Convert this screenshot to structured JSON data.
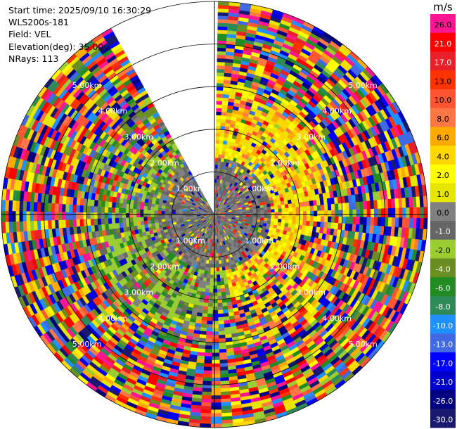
{
  "header": {
    "start_time": "Start time: 2025/09/10 16:30:29",
    "instrument": "WLS200s-181",
    "field": "Field: VEL",
    "elevation": "Elevation(deg): 35.00",
    "nrays": "NRays: 113"
  },
  "chart_data": {
    "type": "heatmap",
    "projection": "polar-ppi",
    "field": "VEL",
    "units": "m/s",
    "range_rings_km": [
      1,
      2,
      3,
      4,
      5
    ],
    "ring_labels": [
      "1.00km",
      "2.00km",
      "3.00km",
      "4.00km",
      "5.00km"
    ],
    "max_range_km": 5.0,
    "missing_sector_deg": [
      -30,
      0
    ],
    "colorbar": {
      "unit": "m/s",
      "ticks": [
        "26.0",
        "21.0",
        "17.0",
        "13.0",
        "10.0",
        "8.0",
        "6.0",
        "4.0",
        "2.0",
        "1.0",
        "0.0",
        "-1.0",
        "-2.0",
        "-4.0",
        "-6.0",
        "-8.0",
        "-10.0",
        "-13.0",
        "-17.0",
        "-21.0",
        "-26.0",
        "-30.0"
      ],
      "colors": [
        "#ff1493",
        "#ff0000",
        "#e8202a",
        "#ff3300",
        "#ff5533",
        "#ff7744",
        "#ffaa00",
        "#ffd700",
        "#ffff00",
        "#e6e600",
        "#808080",
        "#666666",
        "#9acd32",
        "#6b8e23",
        "#228b22",
        "#2e8b57",
        "#1e90ff",
        "#4169e1",
        "#0000ff",
        "#0000cd",
        "#000080",
        "#191970"
      ]
    }
  }
}
